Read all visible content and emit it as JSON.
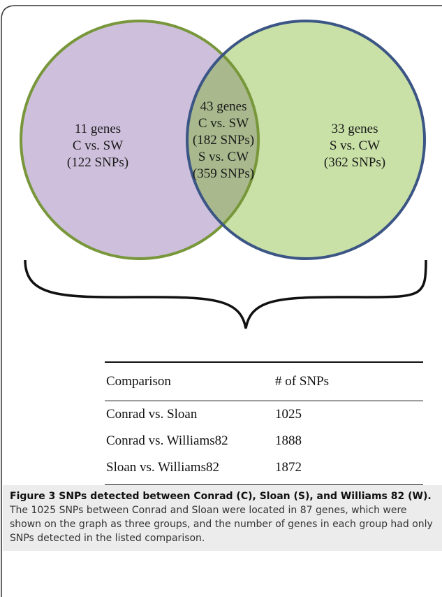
{
  "venn": {
    "left": [
      "11 genes",
      "C vs. SW",
      "(122 SNPs)"
    ],
    "middle": [
      "43 genes",
      "C vs. SW",
      "(182 SNPs)",
      "S vs. CW",
      "(359 SNPs)"
    ],
    "right": [
      "33 genes",
      "S vs. CW",
      "(362 SNPs)"
    ]
  },
  "table": {
    "header": [
      "Comparison",
      "# of SNPs"
    ],
    "rows": [
      [
        "Conrad vs. Sloan",
        "1025"
      ],
      [
        "Conrad vs. Williams82",
        "1888"
      ],
      [
        "Sloan vs. Williams82",
        "1872"
      ]
    ]
  },
  "caption": {
    "title": "Figure 3 SNPs detected between Conrad (C), Sloan (S), and Williams 82 (W).",
    "text": "The 1025 SNPs between Conrad and Sloan were located in 87 genes, which were shown on the graph as three groups, and the number of genes in each group had only SNPs detected in the listed comparison."
  }
}
